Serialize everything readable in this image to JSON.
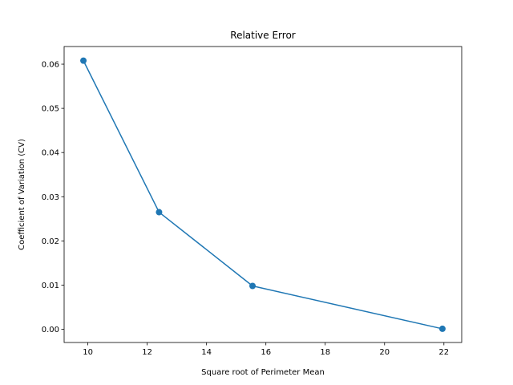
{
  "chart_data": {
    "type": "line",
    "title": "Relative Error",
    "xlabel": "Square root of Perimeter Mean",
    "ylabel": "Coefficient of Variation (CV)",
    "xlim": [
      9.2,
      22.6
    ],
    "ylim": [
      -0.003,
      0.064
    ],
    "xticks": [
      10,
      12,
      14,
      16,
      18,
      20,
      22
    ],
    "xtick_labels": [
      "10",
      "12",
      "14",
      "16",
      "18",
      "20",
      "22"
    ],
    "yticks": [
      0.0,
      0.01,
      0.02,
      0.03,
      0.04,
      0.05,
      0.06
    ],
    "ytick_labels": [
      "0.00",
      "0.01",
      "0.02",
      "0.03",
      "0.04",
      "0.05",
      "0.06"
    ],
    "grid": false,
    "series": [
      {
        "x": [
          9.85,
          12.4,
          15.55,
          21.95
        ],
        "y": [
          0.0608,
          0.0265,
          0.0098,
          0.0001
        ],
        "color": "#1f77b4",
        "marker": "circle"
      }
    ]
  }
}
